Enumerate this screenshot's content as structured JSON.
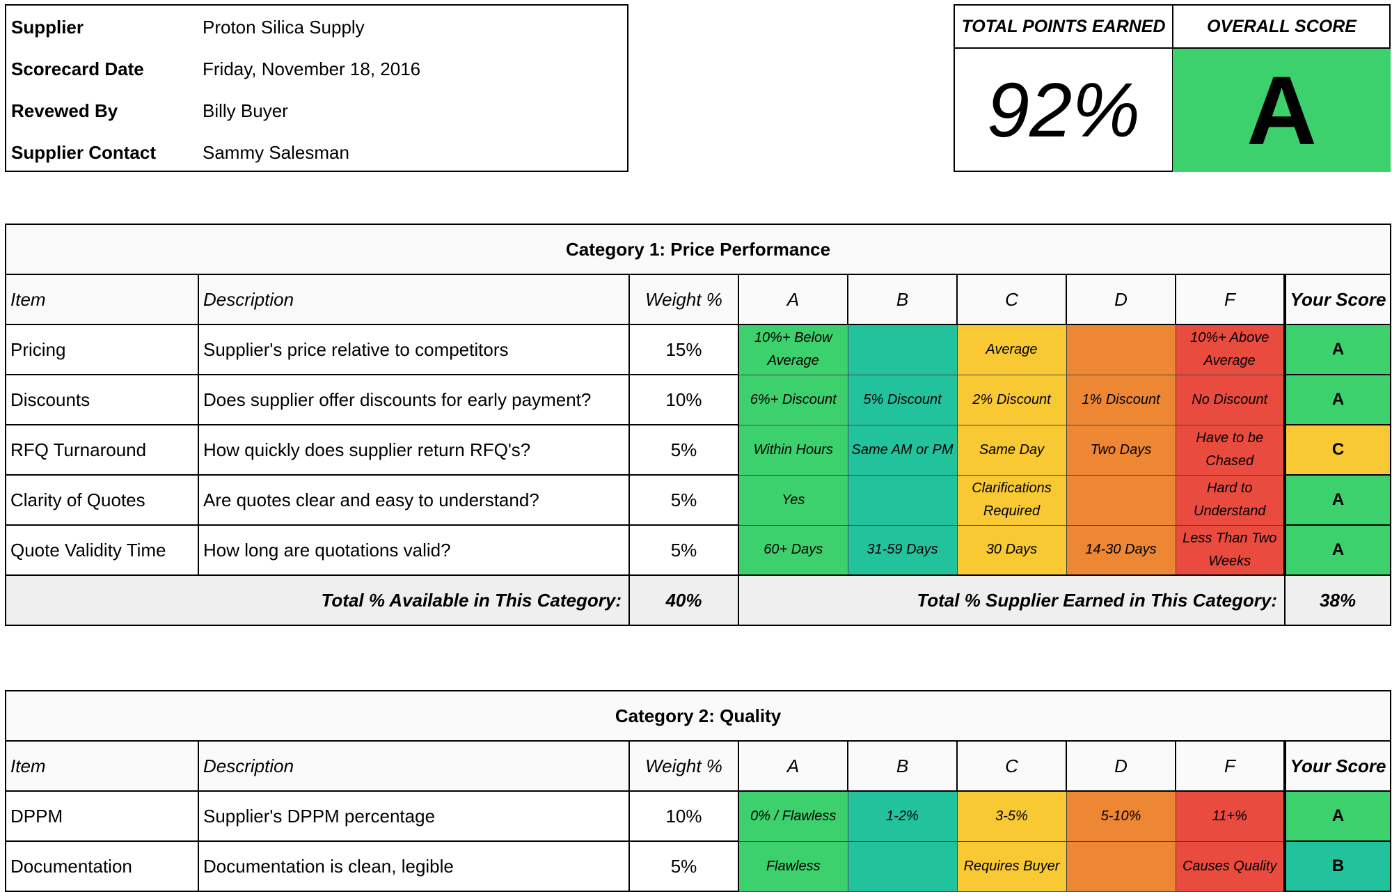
{
  "supplier_info": {
    "rows": [
      {
        "label": "Supplier",
        "value": "Proton Silica Supply"
      },
      {
        "label": "Scorecard Date",
        "value": "Friday, November 18, 2016"
      },
      {
        "label": "Revewed By",
        "value": "Billy Buyer"
      },
      {
        "label": "Supplier Contact",
        "value": "Sammy Salesman"
      }
    ]
  },
  "summary": {
    "points_header": "TOTAL POINTS EARNED",
    "score_header": "OVERALL SCORE",
    "points_value": "92%",
    "score_value": "A",
    "score_color": "#3dd16d"
  },
  "grade_colors": {
    "A": "#3dd16d",
    "B": "#22c39c",
    "C": "#f8c932",
    "D": "#ee8734",
    "F": "#ea4b3f"
  },
  "categories": [
    {
      "title": "Category 1: Price Performance",
      "headers": {
        "item": "Item",
        "description": "Description",
        "weight": "Weight %",
        "grades": [
          "A",
          "B",
          "C",
          "D",
          "F"
        ],
        "your_score": "Your Score"
      },
      "rows": [
        {
          "item": "Pricing",
          "description": "Supplier's price relative to competitors",
          "weight": "15%",
          "criteria": [
            "10%+ Below Average",
            "",
            "Average",
            "",
            "10%+ Above Average"
          ],
          "score": "A"
        },
        {
          "item": "Discounts",
          "description": "Does supplier offer discounts for early payment?",
          "weight": "10%",
          "criteria": [
            "6%+ Discount",
            "5% Discount",
            "2% Discount",
            "1% Discount",
            "No Discount"
          ],
          "score": "A"
        },
        {
          "item": "RFQ Turnaround",
          "description": "How quickly does supplier return RFQ's?",
          "weight": "5%",
          "criteria": [
            "Within Hours",
            "Same AM or PM",
            "Same Day",
            "Two Days",
            "Have to be Chased"
          ],
          "score": "C"
        },
        {
          "item": "Clarity of Quotes",
          "description": "Are quotes clear and easy to understand?",
          "weight": "5%",
          "criteria": [
            "Yes",
            "",
            "Clarifications Required",
            "",
            "Hard to Understand"
          ],
          "score": "A"
        },
        {
          "item": "Quote Validity Time",
          "description": "How long are quotations valid?",
          "weight": "5%",
          "criteria": [
            "60+ Days",
            "31-59 Days",
            "30 Days",
            "14-30 Days",
            "Less Than Two Weeks"
          ],
          "score": "A"
        }
      ],
      "total_available_label": "Total % Available in This Category:",
      "total_available": "40%",
      "total_earned_label": "Total % Supplier Earned in This Category:",
      "total_earned": "38%"
    },
    {
      "title": "Category 2: Quality",
      "headers": {
        "item": "Item",
        "description": "Description",
        "weight": "Weight %",
        "grades": [
          "A",
          "B",
          "C",
          "D",
          "F"
        ],
        "your_score": "Your Score"
      },
      "rows": [
        {
          "item": "DPPM",
          "description": "Supplier's DPPM percentage",
          "weight": "10%",
          "criteria": [
            "0% / Flawless",
            "1-2%",
            "3-5%",
            "5-10%",
            "11+%"
          ],
          "score": "A"
        },
        {
          "item": "Documentation",
          "description": "Documentation is clean, legible",
          "weight": "5%",
          "criteria": [
            "Flawless",
            "",
            "Requires Buyer",
            "",
            "Causes Quality"
          ],
          "score": "B"
        }
      ]
    }
  ]
}
